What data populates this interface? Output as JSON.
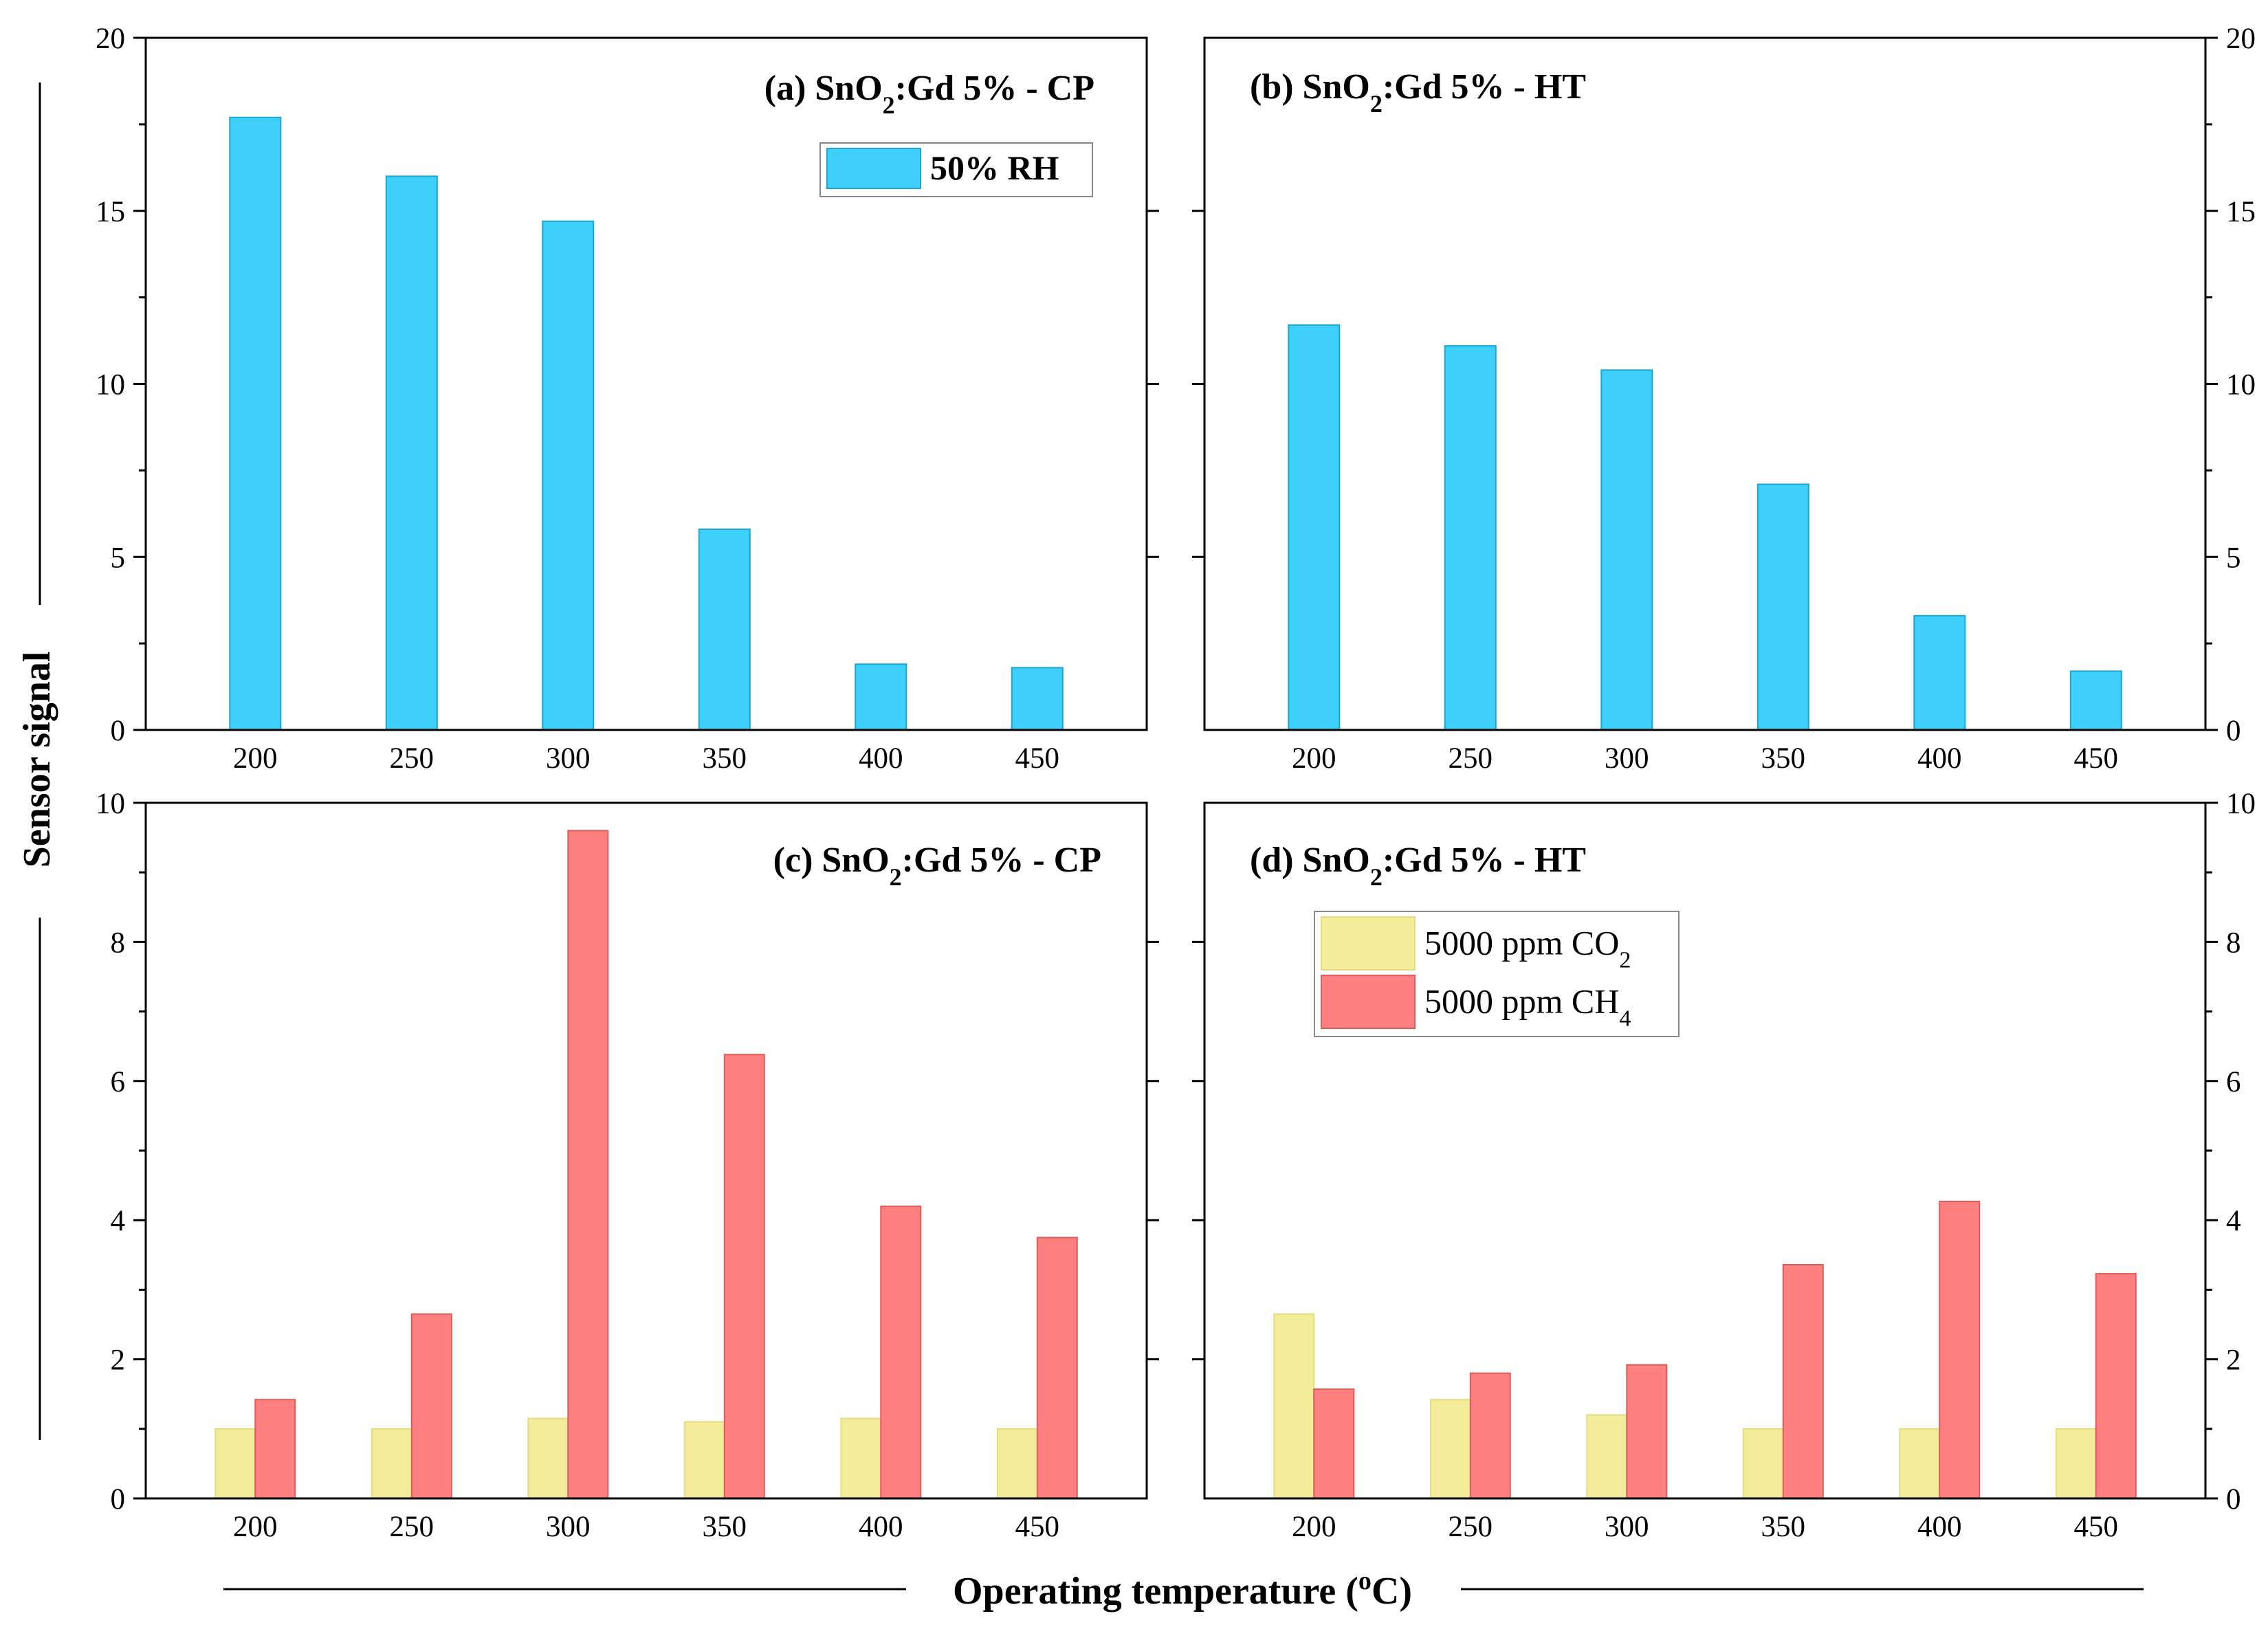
{
  "figure": {
    "ylabel": "Sensor signal",
    "xlabel_main": "Operating temperature (",
    "xlabel_sup": "o",
    "xlabel_end": "C)"
  },
  "chart_data": [
    {
      "id": "a",
      "type": "bar",
      "title_prefix": "(a) SnO",
      "title_sub": "2",
      "title_suffix": ":Gd 5% - CP",
      "categories": [
        "200",
        "250",
        "300",
        "350",
        "400",
        "450"
      ],
      "ylim": [
        0,
        20
      ],
      "yticks": [
        "0",
        "5",
        "10",
        "15",
        "20"
      ],
      "series": [
        {
          "name": "50% RH",
          "name_sub": "",
          "color": "#3ECFFB",
          "edge": "#1BA6D8",
          "values": [
            17.7,
            16.0,
            14.7,
            5.8,
            1.9,
            1.8
          ]
        }
      ]
    },
    {
      "id": "b",
      "type": "bar",
      "title_prefix": "(b) SnO",
      "title_sub": "2",
      "title_suffix": ":Gd 5% - HT",
      "categories": [
        "200",
        "250",
        "300",
        "350",
        "400",
        "450"
      ],
      "ylim": [
        0,
        20
      ],
      "yticks": [
        "0",
        "5",
        "10",
        "15",
        "20"
      ],
      "series": [
        {
          "name": "50% RH",
          "name_sub": "",
          "color": "#3ECFFB",
          "edge": "#1BA6D8",
          "values": [
            11.7,
            11.1,
            10.4,
            7.1,
            3.3,
            1.7
          ]
        }
      ]
    },
    {
      "id": "c",
      "type": "bar",
      "title_prefix": "(c) SnO",
      "title_sub": "2",
      "title_suffix": ":Gd 5% - CP",
      "categories": [
        "200",
        "250",
        "300",
        "350",
        "400",
        "450"
      ],
      "ylim": [
        0,
        10
      ],
      "yticks": [
        "0",
        "2",
        "4",
        "6",
        "8",
        "10"
      ],
      "series": [
        {
          "name": "5000 ppm CO",
          "name_sub": "2",
          "color": "#F3EC9A",
          "edge": "#E5DC80",
          "values": [
            1.0,
            1.0,
            1.15,
            1.1,
            1.15,
            1.0
          ]
        },
        {
          "name": "5000 ppm CH",
          "name_sub": "4",
          "color": "#FF8080",
          "edge": "#E05A5A",
          "values": [
            1.42,
            2.65,
            9.6,
            6.38,
            4.2,
            3.75
          ]
        }
      ]
    },
    {
      "id": "d",
      "type": "bar",
      "title_prefix": "(d) SnO",
      "title_sub": "2",
      "title_suffix": ":Gd 5% - HT",
      "categories": [
        "200",
        "250",
        "300",
        "350",
        "400",
        "450"
      ],
      "ylim": [
        0,
        10
      ],
      "yticks": [
        "0",
        "2",
        "4",
        "6",
        "8",
        "10"
      ],
      "series": [
        {
          "name": "5000 ppm CO",
          "name_sub": "2",
          "color": "#F3EC9A",
          "edge": "#E5DC80",
          "values": [
            2.65,
            1.42,
            1.2,
            1.0,
            1.0,
            1.0
          ]
        },
        {
          "name": "5000 ppm CH",
          "name_sub": "4",
          "color": "#FF8080",
          "edge": "#E05A5A",
          "values": [
            1.57,
            1.8,
            1.92,
            3.36,
            4.27,
            3.23
          ]
        }
      ]
    }
  ]
}
